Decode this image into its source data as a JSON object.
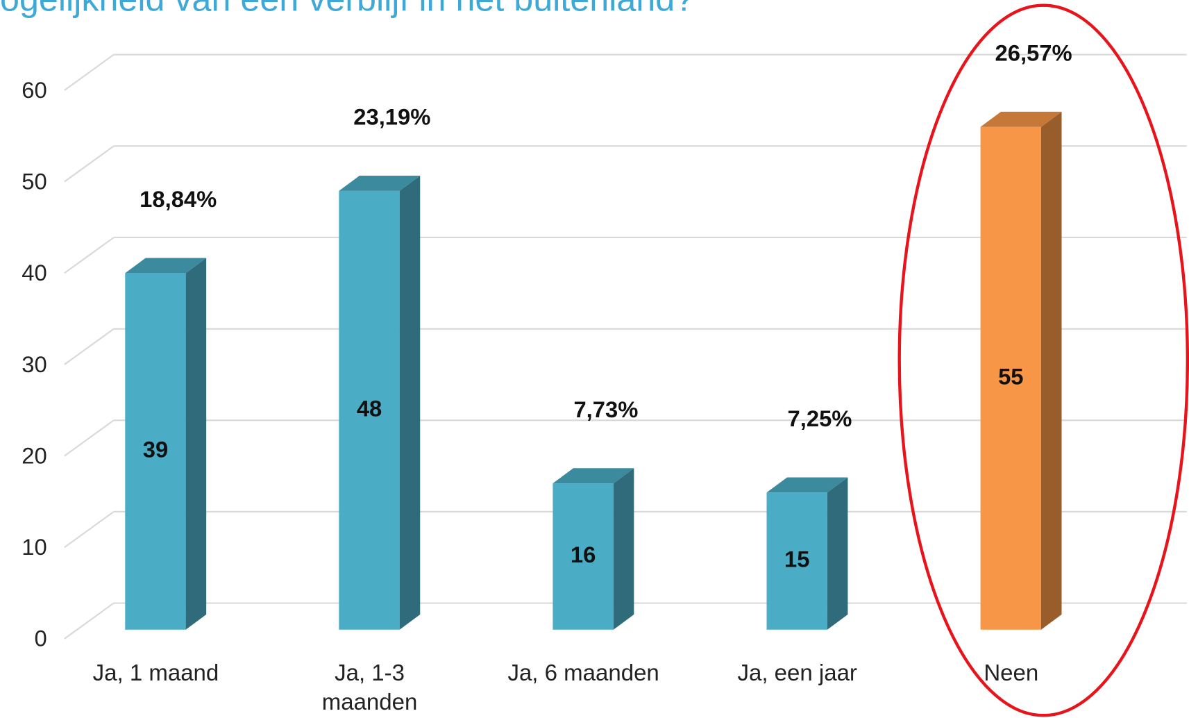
{
  "chart_data": {
    "type": "bar3d",
    "title": "ogelijkheid van een verblijf in het buitenland?",
    "categories": [
      "Ja, 1 maand",
      "Ja, 1-3 maanden",
      "Ja, 6 maanden",
      "Ja, een jaar",
      "Neen"
    ],
    "values": [
      39,
      48,
      16,
      15,
      55
    ],
    "percent_labels": [
      "18,84%",
      "23,19%",
      "7,73%",
      "7,25%",
      "26,57%"
    ],
    "colors": [
      "#4bacc6",
      "#4bacc6",
      "#4bacc6",
      "#4bacc6",
      "#f79646"
    ],
    "ylim": [
      0,
      60
    ],
    "yticks": [
      0,
      10,
      20,
      30,
      40,
      50,
      60
    ],
    "grid": true
  }
}
